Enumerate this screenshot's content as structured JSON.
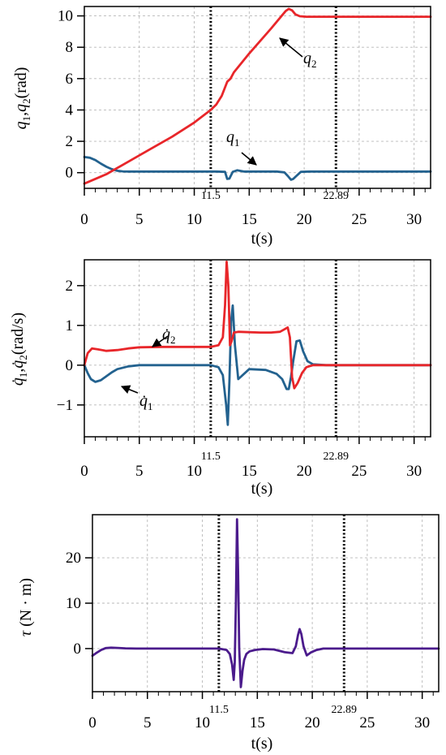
{
  "colors": {
    "red": "#e8262a",
    "blue": "#23628f",
    "purple": "#4b1b8c",
    "grid": "#b8b8b8"
  },
  "chart_data": [
    {
      "type": "line",
      "xlabel": "t(s)",
      "ylabel": "q1,q2(rad)",
      "xlim": [
        0,
        31.5
      ],
      "ylim": [
        -1.0,
        10.6
      ],
      "xticks": [
        "0",
        "5",
        "10",
        "15",
        "20",
        "25",
        "30"
      ],
      "yticks": [
        "0",
        "2",
        "4",
        "6",
        "8",
        "10"
      ],
      "vlines": [
        {
          "x": 11.5,
          "label": "11.5"
        },
        {
          "x": 22.89,
          "label": "22.89"
        }
      ],
      "annotations": [
        "q2",
        "q1"
      ],
      "series": [
        {
          "name": "q1",
          "color": "#23628f",
          "x": [
            0,
            0.5,
            1,
            1.5,
            2,
            2.5,
            3,
            3.5,
            4,
            5,
            6,
            8,
            10,
            12,
            12.8,
            13.0,
            13.2,
            13.5,
            13.9,
            14.5,
            16,
            17.5,
            18.2,
            18.5,
            18.8,
            19.0,
            19.3,
            19.7,
            20.5,
            22,
            25,
            31.5
          ],
          "values": [
            1.0,
            0.95,
            0.8,
            0.58,
            0.38,
            0.22,
            0.12,
            0.08,
            0.07,
            0.07,
            0.07,
            0.07,
            0.07,
            0.07,
            0.05,
            -0.4,
            -0.38,
            0.05,
            0.15,
            0.07,
            0.07,
            0.07,
            0.02,
            -0.2,
            -0.45,
            -0.4,
            -0.2,
            0.05,
            0.07,
            0.07,
            0.07,
            0.07
          ]
        },
        {
          "name": "q2",
          "color": "#e8262a",
          "x": [
            0,
            2,
            4,
            6,
            8,
            10,
            11.5,
            12,
            12.5,
            13.0,
            13.3,
            13.6,
            15,
            17,
            18.3,
            18.6,
            18.9,
            19.2,
            19.6,
            20.2,
            22,
            25,
            31.5
          ],
          "values": [
            -0.7,
            -0.1,
            0.7,
            1.5,
            2.3,
            3.2,
            4.0,
            4.35,
            4.9,
            5.8,
            6.0,
            6.4,
            7.6,
            9.2,
            10.3,
            10.45,
            10.35,
            10.1,
            9.98,
            9.95,
            9.95,
            9.95,
            9.95
          ]
        }
      ]
    },
    {
      "type": "line",
      "xlabel": "t(s)",
      "ylabel": "q̇1,q̇2(rad/s)",
      "xlim": [
        0,
        31.5
      ],
      "ylim": [
        -1.8,
        2.65
      ],
      "xticks": [
        "0",
        "5",
        "10",
        "15",
        "20",
        "25",
        "30"
      ],
      "yticks": [
        "−1",
        "0",
        "1",
        "2"
      ],
      "vlines": [
        {
          "x": 11.5,
          "label": "11.5"
        },
        {
          "x": 22.89,
          "label": "22.89"
        }
      ],
      "annotations": [
        "q̇2",
        "q̇1"
      ],
      "series": [
        {
          "name": "q̇1",
          "color": "#23628f",
          "x": [
            0,
            0.3,
            0.6,
            1.0,
            1.5,
            2,
            2.5,
            3,
            4,
            5,
            7,
            9,
            11.5,
            12.2,
            12.6,
            12.9,
            13.05,
            13.2,
            13.35,
            13.5,
            13.7,
            14.0,
            15,
            16.5,
            17.5,
            18.0,
            18.4,
            18.6,
            18.8,
            19.0,
            19.3,
            19.6,
            19.9,
            20.3,
            20.8,
            22,
            31.5
          ],
          "values": [
            0,
            -0.2,
            -0.35,
            -0.42,
            -0.38,
            -0.28,
            -0.18,
            -0.1,
            -0.03,
            0,
            0,
            0,
            0,
            -0.05,
            -0.25,
            -1.0,
            -1.5,
            -0.4,
            1.1,
            1.5,
            0.5,
            -0.35,
            -0.1,
            -0.12,
            -0.22,
            -0.35,
            -0.6,
            -0.6,
            -0.3,
            0.1,
            0.6,
            0.62,
            0.35,
            0.1,
            0.02,
            0,
            0
          ]
        },
        {
          "name": "q̇2",
          "color": "#e8262a",
          "x": [
            0,
            0.3,
            0.7,
            1.2,
            2,
            3,
            4,
            5,
            7,
            9,
            11.5,
            12.2,
            12.6,
            12.8,
            12.95,
            13.1,
            13.25,
            13.4,
            13.6,
            14.0,
            15,
            16,
            17,
            17.8,
            18.2,
            18.5,
            18.7,
            18.9,
            19.1,
            19.4,
            19.8,
            20.2,
            20.8,
            22,
            31.5
          ],
          "values": [
            0,
            0.3,
            0.42,
            0.4,
            0.36,
            0.38,
            0.42,
            0.45,
            0.46,
            0.46,
            0.46,
            0.5,
            0.7,
            1.5,
            2.6,
            2.0,
            0.5,
            0.6,
            0.82,
            0.84,
            0.83,
            0.82,
            0.82,
            0.84,
            0.9,
            0.95,
            0.7,
            -0.3,
            -0.58,
            -0.45,
            -0.2,
            -0.05,
            0,
            0,
            0
          ]
        }
      ]
    },
    {
      "type": "line",
      "xlabel": "t(s)",
      "ylabel": "τ (N · m)",
      "xlim": [
        0,
        31.5
      ],
      "ylim": [
        -9.5,
        29.5
      ],
      "xticks": [
        "0",
        "5",
        "10",
        "15",
        "20",
        "25",
        "30"
      ],
      "yticks": [
        "0",
        "10",
        "20"
      ],
      "vlines": [
        {
          "x": 11.5,
          "label": "11.5"
        },
        {
          "x": 22.89,
          "label": "22.89"
        }
      ],
      "series": [
        {
          "name": "τ",
          "color": "#4b1b8c",
          "x": [
            0,
            0.4,
            0.8,
            1.2,
            1.7,
            2.3,
            3,
            4,
            6,
            8,
            10,
            11.5,
            12.2,
            12.5,
            12.7,
            12.85,
            12.95,
            13.05,
            13.15,
            13.25,
            13.35,
            13.5,
            13.65,
            13.8,
            14.0,
            14.3,
            14.8,
            15.5,
            16.5,
            17.5,
            18.2,
            18.5,
            18.7,
            18.85,
            19.0,
            19.2,
            19.5,
            19.9,
            20.4,
            21,
            22,
            31.5
          ],
          "values": [
            -1.6,
            -0.9,
            -0.3,
            0.1,
            0.2,
            0.15,
            0.05,
            0,
            0,
            0,
            0,
            0,
            -0.3,
            -1.2,
            -3.5,
            -6.9,
            -3.0,
            10.0,
            28.5,
            17.0,
            0,
            -8.5,
            -5.0,
            -2.5,
            -1.2,
            -0.6,
            -0.3,
            -0.1,
            -0.2,
            -0.8,
            -1.0,
            0.5,
            3.0,
            4.3,
            3.2,
            0.5,
            -1.5,
            -0.8,
            -0.3,
            0,
            0,
            0
          ]
        }
      ]
    }
  ]
}
